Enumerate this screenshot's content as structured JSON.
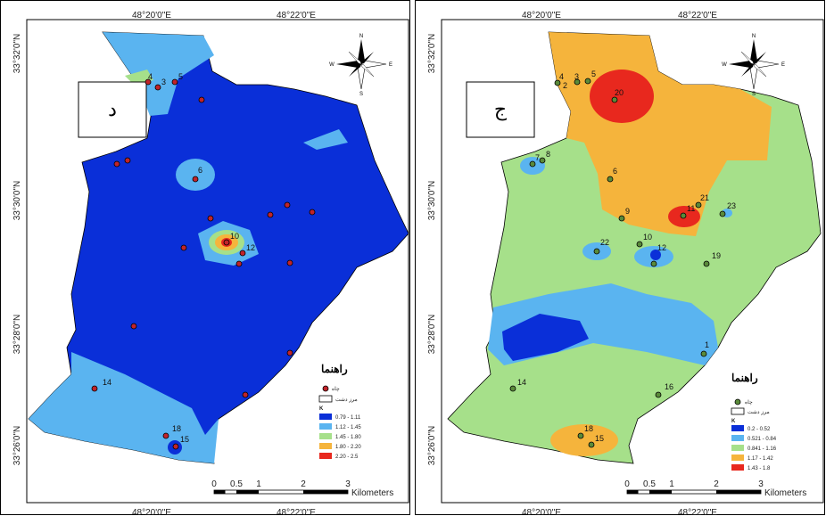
{
  "panels": [
    {
      "id": "left",
      "letter": "د",
      "legend": {
        "title": "راهنما",
        "point_label": "چاه",
        "boundary_label": "مرز دشت",
        "class_header": "K",
        "classes": [
          {
            "range": "0.79 - 1.11",
            "color": "#0a2fd8"
          },
          {
            "range": "1.12 - 1.45",
            "color": "#5ab4f0"
          },
          {
            "range": "1.45 - 1.80",
            "color": "#a6e08a"
          },
          {
            "range": "1.80 - 2.20",
            "color": "#f5b43c"
          },
          {
            "range": "2.20 - 2.5",
            "color": "#e8281e"
          }
        ]
      },
      "wells": [
        "4",
        "3",
        "5",
        "6",
        "10",
        "12",
        "14",
        "18",
        "15"
      ]
    },
    {
      "id": "right",
      "letter": "ج",
      "legend": {
        "title": "راهنما",
        "point_label": "چاه",
        "boundary_label": "مرز دشت",
        "class_header": "K",
        "classes": [
          {
            "range": "0.2 - 0.52",
            "color": "#0a2fd8"
          },
          {
            "range": "0.521 - 0.84",
            "color": "#5ab4f0"
          },
          {
            "range": "0.841 - 1.16",
            "color": "#a6e08a"
          },
          {
            "range": "1.17 - 1.42",
            "color": "#f5b43c"
          },
          {
            "range": "1.43 - 1.8",
            "color": "#e8281e"
          }
        ]
      },
      "wells": [
        "4",
        "2",
        "3",
        "5",
        "20",
        "7",
        "8",
        "6",
        "21",
        "23",
        "11",
        "9",
        "22",
        "10",
        "12",
        "19",
        "1",
        "14",
        "16",
        "18",
        "15"
      ]
    }
  ],
  "axes": {
    "top_left": "48°20'0\"E",
    "top_right": "48°22'0\"E",
    "lat_1": "33°32'0\"N",
    "lat_2": "33°30'0\"N",
    "lat_3": "33°28'0\"N",
    "lat_4": "33°26'0\"N"
  },
  "north_arrow": {
    "n": "N",
    "s": "S",
    "e": "E",
    "w": "W"
  },
  "scale_bar": {
    "ticks": [
      "0",
      "0.5",
      "1",
      "2",
      "3"
    ],
    "unit": "Kilometers"
  }
}
